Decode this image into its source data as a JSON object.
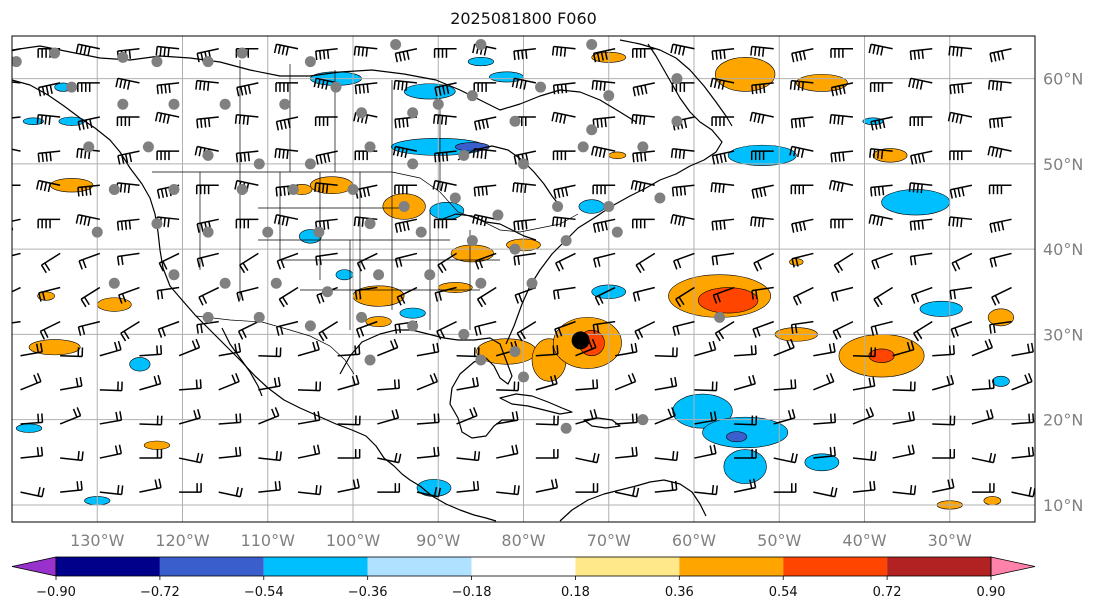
{
  "title": "2025081800 F060",
  "map": {
    "lon_range": [
      -140,
      -20
    ],
    "lat_range": [
      8,
      65
    ],
    "lon_ticks": [
      {
        "value": -130,
        "label": "130°W"
      },
      {
        "value": -120,
        "label": "120°W"
      },
      {
        "value": -110,
        "label": "110°W"
      },
      {
        "value": -100,
        "label": "100°W"
      },
      {
        "value": -90,
        "label": "90°W"
      },
      {
        "value": -80,
        "label": "80°W"
      },
      {
        "value": -70,
        "label": "70°W"
      },
      {
        "value": -60,
        "label": "60°W"
      },
      {
        "value": -50,
        "label": "50°W"
      },
      {
        "value": -40,
        "label": "40°W"
      },
      {
        "value": -30,
        "label": "30°W"
      }
    ],
    "lat_ticks": [
      {
        "value": 60,
        "label": "60°N"
      },
      {
        "value": 50,
        "label": "50°N"
      },
      {
        "value": 40,
        "label": "40°N"
      },
      {
        "value": 30,
        "label": "30°N"
      },
      {
        "value": 20,
        "label": "20°N"
      },
      {
        "value": 10,
        "label": "10°N"
      }
    ],
    "grid": true,
    "storm_center": {
      "lon": -73.3,
      "lat": 29.3
    },
    "station_lonlat": [
      [
        -139.5,
        62.0
      ],
      [
        -135,
        63
      ],
      [
        -127,
        62.5
      ],
      [
        -123,
        62
      ],
      [
        -117,
        62
      ],
      [
        -113,
        63
      ],
      [
        -105,
        62
      ],
      [
        -95,
        64
      ],
      [
        -85,
        64
      ],
      [
        -72,
        64
      ],
      [
        -102,
        59
      ],
      [
        -93,
        56
      ],
      [
        -86,
        58
      ],
      [
        -78,
        59
      ],
      [
        -70,
        58
      ],
      [
        -62,
        60
      ],
      [
        -133,
        59
      ],
      [
        -127,
        57
      ],
      [
        -121,
        57
      ],
      [
        -115,
        57
      ],
      [
        -108,
        57
      ],
      [
        -99,
        56
      ],
      [
        -90,
        57
      ],
      [
        -81,
        55
      ],
      [
        -72,
        54
      ],
      [
        -62,
        55
      ],
      [
        -131,
        52
      ],
      [
        -124,
        52
      ],
      [
        -117,
        51
      ],
      [
        -111,
        50
      ],
      [
        -105,
        50
      ],
      [
        -98,
        52
      ],
      [
        -93,
        50
      ],
      [
        -87,
        51
      ],
      [
        -80,
        50
      ],
      [
        -73,
        52
      ],
      [
        -66,
        52
      ],
      [
        -128,
        47
      ],
      [
        -121,
        47
      ],
      [
        -113,
        47
      ],
      [
        -107,
        47
      ],
      [
        -100,
        47
      ],
      [
        -94,
        45
      ],
      [
        -88,
        46
      ],
      [
        -83,
        44
      ],
      [
        -76,
        45
      ],
      [
        -70,
        45
      ],
      [
        -64,
        46
      ],
      [
        -130,
        42
      ],
      [
        -123,
        43
      ],
      [
        -117,
        42
      ],
      [
        -110,
        42
      ],
      [
        -104,
        42
      ],
      [
        -98,
        43
      ],
      [
        -92,
        42
      ],
      [
        -86,
        41
      ],
      [
        -81,
        40
      ],
      [
        -75,
        41
      ],
      [
        -69,
        42
      ],
      [
        -128,
        36
      ],
      [
        -121,
        37
      ],
      [
        -115,
        36
      ],
      [
        -109,
        36
      ],
      [
        -103,
        35
      ],
      [
        -97,
        37
      ],
      [
        -91,
        37
      ],
      [
        -85,
        36
      ],
      [
        -79,
        36
      ],
      [
        -117,
        32
      ],
      [
        -111,
        32
      ],
      [
        -105,
        31
      ],
      [
        -99,
        32
      ],
      [
        -93,
        31
      ],
      [
        -87,
        30
      ],
      [
        -81,
        28
      ],
      [
        -98,
        27
      ],
      [
        -85,
        27
      ],
      [
        -80,
        25
      ],
      [
        -75,
        19
      ],
      [
        -66,
        20
      ],
      [
        -57,
        32
      ]
    ]
  },
  "wind_barbs": {
    "grid_lon": {
      "start": -139,
      "step": 4.65
    },
    "grid_lat": {
      "start": 63.5,
      "step": -4.0
    },
    "description_by_region": [
      {
        "lat_min": 40,
        "lat_max": 66,
        "direction_deg": 270,
        "speed_kt": 40
      },
      {
        "lat_min": 30,
        "lat_max": 40,
        "direction_deg": 250,
        "speed_kt": 20
      },
      {
        "lat_min": 18,
        "lat_max": 30,
        "direction_deg": 80,
        "speed_kt": 15
      },
      {
        "lat_min": 8,
        "lat_max": 18,
        "direction_deg": 90,
        "speed_kt": 20
      }
    ]
  },
  "contour_levels": [
    -0.9,
    -0.72,
    -0.54,
    -0.36,
    -0.18,
    0.18,
    0.36,
    0.54,
    0.72,
    0.9
  ],
  "anomaly_blobs": [
    {
      "lon": -133,
      "lat": 47.5,
      "rx": 2.5,
      "ry": 0.8,
      "value": 0.45
    },
    {
      "lon": -102.5,
      "lat": 47.5,
      "rx": 2.5,
      "ry": 1.0,
      "value": 0.45
    },
    {
      "lon": -106,
      "lat": 47.0,
      "rx": 1.2,
      "ry": 0.6,
      "value": 0.45
    },
    {
      "lon": -90,
      "lat": 52.0,
      "rx": 5.5,
      "ry": 1.0,
      "value": -0.45
    },
    {
      "lon": -86,
      "lat": 52.0,
      "rx": 2.0,
      "ry": 0.5,
      "value": -0.65
    },
    {
      "lon": -102,
      "lat": 60.0,
      "rx": 3.0,
      "ry": 0.8,
      "value": -0.45
    },
    {
      "lon": -91,
      "lat": 58.5,
      "rx": 3.0,
      "ry": 0.9,
      "value": -0.45
    },
    {
      "lon": -82,
      "lat": 60.2,
      "rx": 2.0,
      "ry": 0.6,
      "value": -0.45
    },
    {
      "lon": -85,
      "lat": 62.0,
      "rx": 1.5,
      "ry": 0.5,
      "value": -0.45
    },
    {
      "lon": -54,
      "lat": 60.5,
      "rx": 3.5,
      "ry": 2.0,
      "value": 0.45
    },
    {
      "lon": -45,
      "lat": 59.5,
      "rx": 3.0,
      "ry": 1.0,
      "value": 0.45
    },
    {
      "lon": -70,
      "lat": 62.5,
      "rx": 2.0,
      "ry": 0.6,
      "value": 0.45
    },
    {
      "lon": -52,
      "lat": 51.0,
      "rx": 4.0,
      "ry": 1.2,
      "value": -0.45
    },
    {
      "lon": -37,
      "lat": 51.0,
      "rx": 2.0,
      "ry": 0.8,
      "value": 0.45
    },
    {
      "lon": -34,
      "lat": 45.5,
      "rx": 4.0,
      "ry": 1.5,
      "value": -0.45
    },
    {
      "lon": -94,
      "lat": 45.0,
      "rx": 2.5,
      "ry": 1.5,
      "value": 0.45
    },
    {
      "lon": -89,
      "lat": 44.5,
      "rx": 2.0,
      "ry": 1.0,
      "value": -0.45
    },
    {
      "lon": -72,
      "lat": 45.0,
      "rx": 1.5,
      "ry": 0.8,
      "value": -0.45
    },
    {
      "lon": -105,
      "lat": 41.5,
      "rx": 1.3,
      "ry": 0.8,
      "value": -0.45
    },
    {
      "lon": -86,
      "lat": 39.5,
      "rx": 2.5,
      "ry": 1.0,
      "value": 0.45
    },
    {
      "lon": -80,
      "lat": 40.5,
      "rx": 2.0,
      "ry": 0.7,
      "value": 0.45
    },
    {
      "lon": -97,
      "lat": 34.5,
      "rx": 3.0,
      "ry": 1.2,
      "value": 0.45
    },
    {
      "lon": -97,
      "lat": 31.5,
      "rx": 1.5,
      "ry": 0.6,
      "value": 0.45
    },
    {
      "lon": -93,
      "lat": 32.5,
      "rx": 1.5,
      "ry": 0.6,
      "value": -0.45
    },
    {
      "lon": -82,
      "lat": 28.0,
      "rx": 3.5,
      "ry": 1.5,
      "value": 0.45
    },
    {
      "lon": -77,
      "lat": 27.0,
      "rx": 2.0,
      "ry": 2.5,
      "value": 0.45
    },
    {
      "lon": -72.5,
      "lat": 29.0,
      "rx": 4.0,
      "ry": 3.0,
      "value": 0.45
    },
    {
      "lon": -72,
      "lat": 29.0,
      "rx": 1.5,
      "ry": 1.5,
      "value": 0.6
    },
    {
      "lon": -70,
      "lat": 35.0,
      "rx": 2.0,
      "ry": 0.8,
      "value": -0.45
    },
    {
      "lon": -57,
      "lat": 34.5,
      "rx": 6.0,
      "ry": 2.5,
      "value": 0.45
    },
    {
      "lon": -56,
      "lat": 34.0,
      "rx": 3.5,
      "ry": 1.5,
      "value": 0.62
    },
    {
      "lon": -31,
      "lat": 33.0,
      "rx": 2.5,
      "ry": 0.9,
      "value": -0.45
    },
    {
      "lon": -38,
      "lat": 27.5,
      "rx": 5.0,
      "ry": 2.5,
      "value": 0.45
    },
    {
      "lon": -38,
      "lat": 27.5,
      "rx": 1.5,
      "ry": 0.8,
      "value": 0.62
    },
    {
      "lon": -48,
      "lat": 30.0,
      "rx": 2.5,
      "ry": 0.8,
      "value": 0.45
    },
    {
      "lon": -135,
      "lat": 28.5,
      "rx": 3.0,
      "ry": 0.9,
      "value": 0.45
    },
    {
      "lon": -128,
      "lat": 33.5,
      "rx": 2.0,
      "ry": 0.8,
      "value": 0.45
    },
    {
      "lon": -136,
      "lat": 34.5,
      "rx": 1.0,
      "ry": 0.5,
      "value": 0.45
    },
    {
      "lon": -59,
      "lat": 21.0,
      "rx": 3.5,
      "ry": 2.0,
      "value": -0.45
    },
    {
      "lon": -54,
      "lat": 18.5,
      "rx": 5.0,
      "ry": 1.8,
      "value": -0.45
    },
    {
      "lon": -55,
      "lat": 18.0,
      "rx": 1.2,
      "ry": 0.6,
      "value": -0.65
    },
    {
      "lon": -54,
      "lat": 14.5,
      "rx": 2.5,
      "ry": 2.0,
      "value": -0.45
    },
    {
      "lon": -45,
      "lat": 15.0,
      "rx": 2.0,
      "ry": 1.0,
      "value": -0.45
    },
    {
      "lon": -90.5,
      "lat": 12.0,
      "rx": 2.0,
      "ry": 1.0,
      "value": -0.45
    },
    {
      "lon": -125,
      "lat": 26.5,
      "rx": 1.2,
      "ry": 0.8,
      "value": -0.45
    },
    {
      "lon": -123,
      "lat": 17.0,
      "rx": 1.5,
      "ry": 0.5,
      "value": 0.45
    },
    {
      "lon": -138,
      "lat": 19.0,
      "rx": 1.5,
      "ry": 0.5,
      "value": -0.45
    },
    {
      "lon": -24,
      "lat": 32.0,
      "rx": 1.5,
      "ry": 1.0,
      "value": 0.45
    },
    {
      "lon": -24,
      "lat": 24.5,
      "rx": 1.0,
      "ry": 0.6,
      "value": -0.45
    },
    {
      "lon": -25,
      "lat": 10.5,
      "rx": 1.0,
      "ry": 0.5,
      "value": 0.45
    },
    {
      "lon": -30,
      "lat": 10.0,
      "rx": 1.5,
      "ry": 0.5,
      "value": 0.45
    },
    {
      "lon": -130,
      "lat": 10.5,
      "rx": 1.5,
      "ry": 0.5,
      "value": -0.45
    },
    {
      "lon": -137.5,
      "lat": 55.0,
      "rx": 1.2,
      "ry": 0.4,
      "value": -0.45
    },
    {
      "lon": -134,
      "lat": 59.0,
      "rx": 1.0,
      "ry": 0.5,
      "value": -0.45
    },
    {
      "lon": -133,
      "lat": 55.0,
      "rx": 1.5,
      "ry": 0.5,
      "value": -0.45
    },
    {
      "lon": -39,
      "lat": 55.0,
      "rx": 1.2,
      "ry": 0.4,
      "value": -0.45
    },
    {
      "lon": -48,
      "lat": 38.5,
      "rx": 0.8,
      "ry": 0.4,
      "value": 0.45
    },
    {
      "lon": -69,
      "lat": 51.0,
      "rx": 1.0,
      "ry": 0.4,
      "value": 0.45
    },
    {
      "lon": -88,
      "lat": 35.5,
      "rx": 2.0,
      "ry": 0.6,
      "value": 0.45
    },
    {
      "lon": -101,
      "lat": 37.0,
      "rx": 1.0,
      "ry": 0.6,
      "value": -0.45
    }
  ],
  "colorbar": {
    "levels": [
      -0.9,
      -0.72,
      -0.54,
      -0.36,
      -0.18,
      0.18,
      0.36,
      0.54,
      0.72,
      0.9
    ],
    "tick_labels": [
      "−0.90",
      "−0.72",
      "−0.54",
      "−0.36",
      "−0.18",
      "0.18",
      "0.36",
      "0.54",
      "0.72",
      "0.90"
    ],
    "colors": [
      "#9932cc",
      "#00008b",
      "#3a5fcd",
      "#00bfff",
      "#b0e2ff",
      "#ffffff",
      "#ffe88a",
      "#ffa500",
      "#ff4500",
      "#b22222",
      "#ff82ab"
    ],
    "extend": "both"
  },
  "colors": {
    "coast": "#000000",
    "grid": "#b0b0b0",
    "station": "#808080",
    "storm": "#000000",
    "barb": "#000000"
  }
}
